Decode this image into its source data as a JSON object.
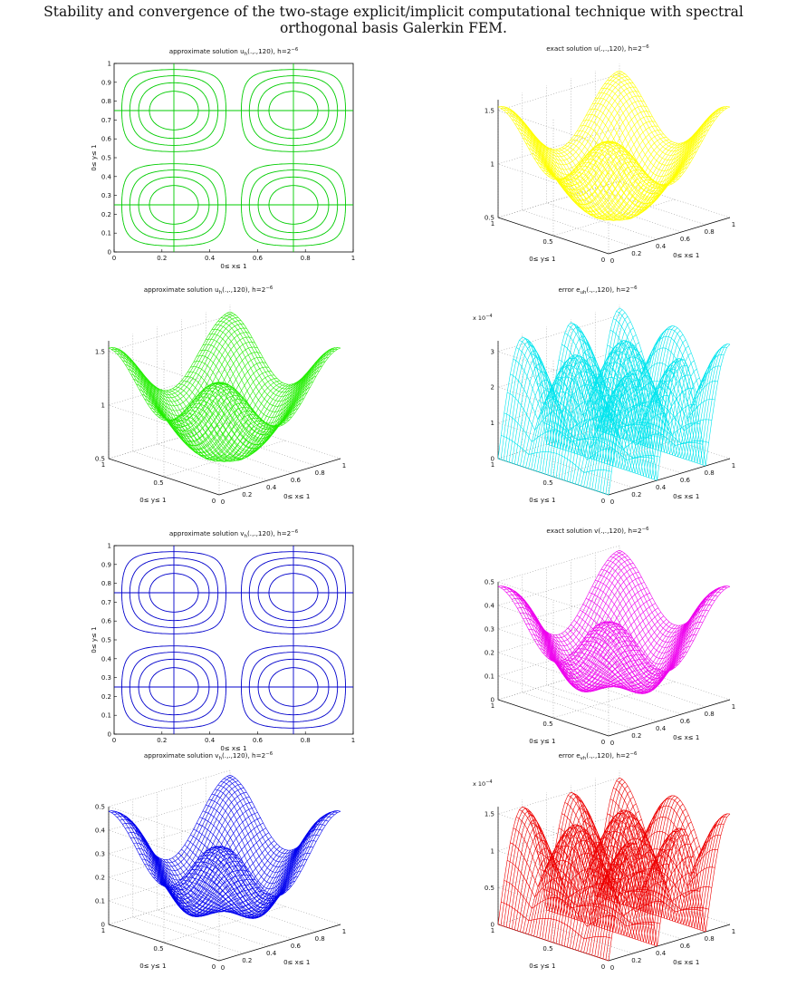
{
  "page": {
    "title_line1": "Stability and convergence of the two-stage explicit/implicit computational technique with spectral",
    "title_line2": "orthogonal basis Galerkin FEM."
  },
  "chart_data": [
    {
      "id": "contour_uh",
      "type": "contour",
      "title": "approximate solution u",
      "title_sub": "h",
      "title_rest": "(.,.,120), h=2",
      "title_sup": "−6",
      "xlabel": "0≤ x≤ 1",
      "ylabel": "0≤ y≤ 1",
      "xticks": [
        "0",
        "0.2",
        "0.4",
        "0.6",
        "0.8",
        "1"
      ],
      "yticks": [
        "0",
        "0.1",
        "0.2",
        "0.3",
        "0.4",
        "0.5",
        "0.6",
        "0.7",
        "0.8",
        "0.9",
        "1"
      ],
      "xlim": [
        0,
        1
      ],
      "ylim": [
        0,
        1
      ],
      "grid": false,
      "color": "#00cc00",
      "function": "sin",
      "levels": [
        0.2,
        0.4,
        0.6,
        0.8,
        -0.2,
        -0.4,
        -0.6,
        -0.8
      ]
    },
    {
      "id": "surface_u",
      "type": "surface",
      "title": "exact solution u(.,.,120), h=2",
      "title_sub": "",
      "title_rest": "",
      "title_sup": "−6",
      "xlabel": "0≤ x≤ 1",
      "ylabel": "0≤ y≤ 1",
      "xticks": [
        "0",
        "0.2",
        "0.4",
        "0.6",
        "0.8",
        "1"
      ],
      "yticks": [
        "0",
        "0.5",
        "1"
      ],
      "zticks": [
        "0.5",
        "1",
        "1.5"
      ],
      "zlim": [
        0.5,
        1.6
      ],
      "scale_label": "",
      "grid": true,
      "color": "#ffff00",
      "function": "cos",
      "amplitude": 1
    },
    {
      "id": "surface_uh",
      "type": "surface",
      "title": "approximate solution u",
      "title_sub": "h",
      "title_rest": "(.,.,120), h=2",
      "title_sup": "−6",
      "xlabel": "0≤ x≤ 1",
      "ylabel": "0≤ y≤ 1",
      "xticks": [
        "0",
        "0.2",
        "0.4",
        "0.6",
        "0.8",
        "1"
      ],
      "yticks": [
        "0",
        "0.5",
        "1"
      ],
      "zticks": [
        "0.5",
        "1",
        "1.5"
      ],
      "zlim": [
        0.5,
        1.6
      ],
      "scale_label": "",
      "grid": true,
      "color": "#22ee00",
      "function": "cos",
      "amplitude": 1
    },
    {
      "id": "error_uh",
      "type": "surface",
      "title": "error e",
      "title_sub": "uh",
      "title_rest": "(.,.,120), h=2",
      "title_sup": "−6",
      "xlabel": "0≤ x≤ 1",
      "ylabel": "0≤ y≤ 1",
      "xticks": [
        "0",
        "0.2",
        "0.4",
        "0.6",
        "0.8",
        "1"
      ],
      "yticks": [
        "0",
        "0.5",
        "1"
      ],
      "zticks": [
        "0",
        "1",
        "2",
        "3"
      ],
      "zlim": [
        0,
        3.3
      ],
      "scale_label": "x 10",
      "scale_exp": "−4",
      "grid": true,
      "color": "#00e5ee",
      "function": "err",
      "amplitude": 3.2
    },
    {
      "id": "contour_vh",
      "type": "contour",
      "title": "approximate solution v",
      "title_sub": "h",
      "title_rest": "(.,.,120), h=2",
      "title_sup": "−6",
      "xlabel": "0≤ x≤ 1",
      "ylabel": "0≤ y≤ 1",
      "xticks": [
        "0",
        "0.2",
        "0.4",
        "0.6",
        "0.8",
        "1"
      ],
      "yticks": [
        "0",
        "0.1",
        "0.2",
        "0.3",
        "0.4",
        "0.5",
        "0.6",
        "0.7",
        "0.8",
        "0.9",
        "1"
      ],
      "xlim": [
        0,
        1
      ],
      "ylim": [
        0,
        1
      ],
      "grid": false,
      "color": "#0000cc",
      "function": "sin",
      "levels": [
        0.2,
        0.4,
        0.6,
        0.8,
        -0.2,
        -0.4,
        -0.6,
        -0.8
      ]
    },
    {
      "id": "surface_v",
      "type": "surface",
      "title": "exact solution v(.,.,120), h=2",
      "title_sub": "",
      "title_rest": "",
      "title_sup": "−6",
      "xlabel": "0≤ x≤ 1",
      "ylabel": "0≤ y≤ 1",
      "xticks": [
        "0",
        "0.2",
        "0.4",
        "0.6",
        "0.8",
        "1"
      ],
      "yticks": [
        "0",
        "0.5",
        "1"
      ],
      "zticks": [
        "0",
        "0.1",
        "0.2",
        "0.3",
        "0.4",
        "0.5"
      ],
      "zlim": [
        0,
        0.5
      ],
      "scale_label": "",
      "grid": true,
      "color": "#ee00ee",
      "function": "vfun",
      "amplitude": 1
    },
    {
      "id": "surface_vh",
      "type": "surface",
      "title": "approximate solution v",
      "title_sub": "h",
      "title_rest": "(.,.,120), h=2",
      "title_sup": "−6",
      "xlabel": "0≤ x≤ 1",
      "ylabel": "0≤ y≤ 1",
      "xticks": [
        "0",
        "0.2",
        "0.4",
        "0.6",
        "0.8",
        "1"
      ],
      "yticks": [
        "0",
        "0.5",
        "1"
      ],
      "zticks": [
        "0",
        "0.1",
        "0.2",
        "0.3",
        "0.4",
        "0.5"
      ],
      "zlim": [
        0,
        0.5
      ],
      "scale_label": "",
      "grid": true,
      "color": "#0000ee",
      "function": "vfun",
      "amplitude": 1
    },
    {
      "id": "error_vh",
      "type": "surface",
      "title": "error e",
      "title_sub": "vh",
      "title_rest": "(.,.,120), h=2",
      "title_sup": "−6",
      "xlabel": "0≤ x≤ 1",
      "ylabel": "0≤ y≤ 1",
      "xticks": [
        "0",
        "0.2",
        "0.4",
        "0.6",
        "0.8",
        "1"
      ],
      "yticks": [
        "0",
        "0.5",
        "1"
      ],
      "zticks": [
        "0",
        "0.5",
        "1",
        "1.5"
      ],
      "zlim": [
        0,
        1.6
      ],
      "scale_label": "x 10",
      "scale_exp": "−4",
      "grid": true,
      "color": "#ee0000",
      "function": "err",
      "amplitude": 1.5
    }
  ]
}
